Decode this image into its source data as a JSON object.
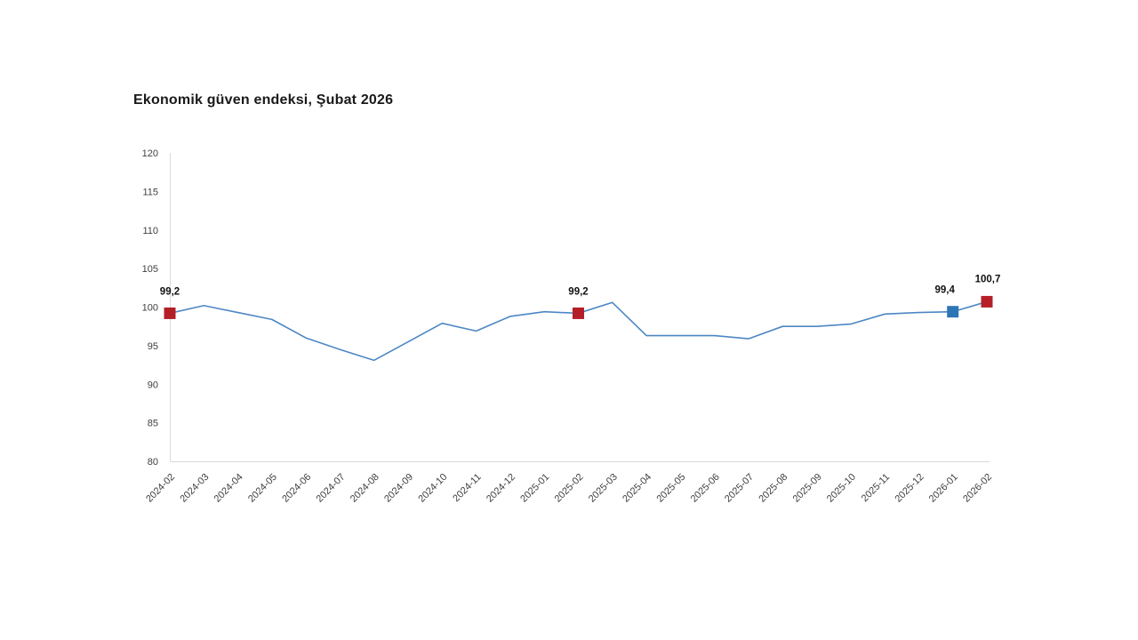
{
  "chart_data": {
    "type": "line",
    "title": "Ekonomik güven endeksi, Şubat 2026",
    "categories": [
      "2024-02",
      "2024-03",
      "2024-04",
      "2024-05",
      "2024-06",
      "2024-07",
      "2024-08",
      "2024-09",
      "2024-10",
      "2024-11",
      "2024-12",
      "2025-01",
      "2025-02",
      "2025-03",
      "2025-04",
      "2025-05",
      "2025-06",
      "2025-07",
      "2025-08",
      "2025-09",
      "2025-10",
      "2025-11",
      "2025-12",
      "2026-01",
      "2026-02"
    ],
    "values": [
      99.2,
      100.2,
      99.3,
      98.4,
      96.0,
      94.5,
      93.1,
      95.5,
      97.9,
      96.9,
      98.8,
      99.4,
      99.2,
      100.6,
      96.3,
      96.3,
      96.3,
      95.9,
      97.5,
      97.5,
      97.8,
      99.1,
      99.3,
      99.4,
      100.7
    ],
    "ylim": [
      80,
      120
    ],
    "ytick_step": 5,
    "yticks": [
      80,
      85,
      90,
      95,
      100,
      105,
      110,
      115,
      120
    ],
    "grid": false,
    "legend": "none",
    "xlabel": "",
    "ylabel": "",
    "colors": {
      "line": "#4d87c4",
      "axis": "#d9d9d9",
      "tick_label": "#404040",
      "data_label": "#111111",
      "marker_red": "#b41f27",
      "marker_blue": "#2e75b6"
    },
    "highlighted_points": [
      {
        "category": "2024-02",
        "index": 0,
        "value": 99.2,
        "label": "99,2",
        "marker_color": "#b41f27",
        "label_dx": 0,
        "label_dy": 0
      },
      {
        "category": "2025-02",
        "index": 12,
        "value": 99.2,
        "label": "99,2",
        "marker_color": "#b41f27",
        "label_dx": 0,
        "label_dy": 0
      },
      {
        "category": "2026-01",
        "index": 23,
        "value": 99.4,
        "label": "99,4",
        "marker_color": "#2e75b6",
        "label_dx": -9,
        "label_dy": 0
      },
      {
        "category": "2026-02",
        "index": 24,
        "value": 100.7,
        "label": "100,7",
        "marker_color": "#b41f27",
        "label_dx": 1,
        "label_dy": -1
      }
    ]
  }
}
